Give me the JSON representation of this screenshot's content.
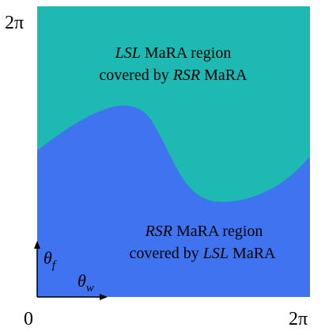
{
  "colors": {
    "upper_region": "#1EB9B2",
    "lower_region": "#3F73F0",
    "axes": "#000000"
  },
  "axis_ticks": {
    "y_top": "2π",
    "origin": "0",
    "x_right": "2π"
  },
  "axis_vars": {
    "y_main": "θ",
    "y_sub": "f",
    "x_main": "θ",
    "x_sub": "w"
  },
  "upper_region": {
    "line1_italic": "LSL",
    "line1_rest": " MaRA region",
    "line2_plain": "covered by ",
    "line2_italic": "RSR",
    "line2_rest": " MaRA"
  },
  "lower_region": {
    "line1_italic": "RSR",
    "line1_rest": " MaRA region",
    "line2_plain": "covered by ",
    "line2_italic": "LSL",
    "line2_rest": " MaRA"
  }
}
